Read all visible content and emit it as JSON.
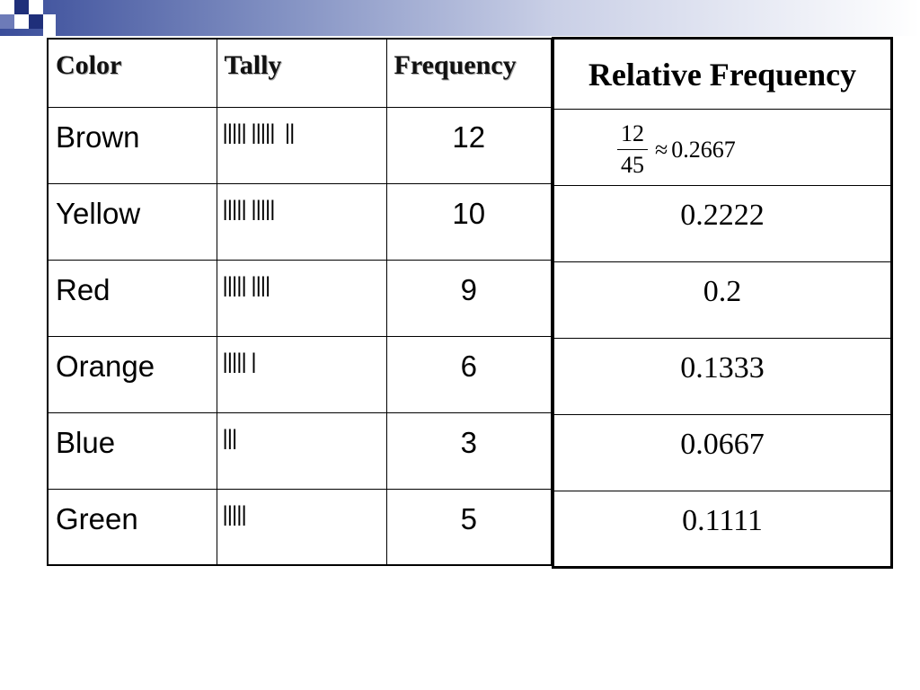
{
  "table": {
    "headers": {
      "color": "Color",
      "tally": "Tally",
      "frequency": "Frequency",
      "relative_frequency": "Relative Frequency"
    },
    "rows": [
      {
        "color": "Brown",
        "tally": "||||| |||||  ||",
        "frequency": "12",
        "relative": "0.2667",
        "fraction": {
          "numerator": "12",
          "denominator": "45",
          "approx_symbol": "≈"
        }
      },
      {
        "color": "Yellow",
        "tally": "||||| |||||",
        "frequency": "10",
        "relative": "0.2222"
      },
      {
        "color": "Red",
        "tally": "||||| ||||",
        "frequency": "9",
        "relative": "0.2"
      },
      {
        "color": "Orange",
        "tally": "||||| |",
        "frequency": "6",
        "relative": "0.1333"
      },
      {
        "color": "Blue",
        "tally": "|||",
        "frequency": "3",
        "relative": "0.0667"
      },
      {
        "color": "Green",
        "tally": "|||||",
        "frequency": "5",
        "relative": "0.1111"
      }
    ]
  },
  "theme": {
    "header_gradient_start": "#3a4d9a",
    "accent_dark": "#1f2f7a",
    "border": "#000000"
  }
}
